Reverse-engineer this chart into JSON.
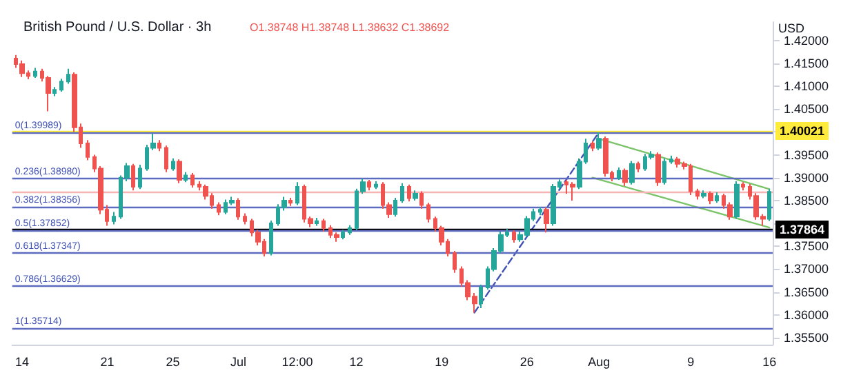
{
  "chart_data": {
    "type": "candlestick",
    "title": "British Pound / U.S. Dollar · 3h",
    "subtitle": "O1.38748 H1.38748 L1.38632 C1.38692",
    "ylabel": "USD",
    "categories": [
      null,
      "14",
      null,
      null,
      null,
      null,
      null,
      null,
      null,
      null,
      null,
      null,
      null,
      null,
      "21",
      null,
      null,
      null,
      null,
      null,
      null,
      null,
      null,
      null,
      "25",
      null,
      null,
      null,
      null,
      null,
      null,
      null,
      null,
      null,
      "Jul",
      null,
      null,
      null,
      null,
      null,
      null,
      null,
      null,
      "12:00",
      null,
      null,
      null,
      null,
      null,
      null,
      null,
      null,
      "12",
      null,
      null,
      null,
      null,
      null,
      null,
      null,
      null,
      null,
      null,
      null,
      null,
      "19",
      null,
      null,
      null,
      null,
      null,
      null,
      null,
      null,
      null,
      null,
      null,
      null,
      "26",
      null,
      null,
      null,
      null,
      null,
      null,
      null,
      null,
      null,
      null,
      "Aug",
      null,
      null,
      null,
      null,
      null,
      null,
      null,
      null,
      null,
      null,
      null,
      null,
      null,
      "9",
      null,
      null,
      null,
      null,
      null,
      null,
      null,
      null,
      null,
      null,
      null,
      "16"
    ],
    "ohlc": [
      [
        1.416,
        1.4168,
        1.414,
        1.4148
      ],
      [
        1.4148,
        1.4156,
        1.412,
        1.4128
      ],
      [
        1.4128,
        1.4134,
        1.4115,
        1.4122
      ],
      [
        1.4122,
        1.414,
        1.4118,
        1.4132
      ],
      [
        1.4132,
        1.4138,
        1.411,
        1.4118
      ],
      [
        1.4118,
        1.4122,
        1.4045,
        1.4085
      ],
      [
        1.4085,
        1.4098,
        1.4078,
        1.4092
      ],
      [
        1.4092,
        1.4116,
        1.4088,
        1.411
      ],
      [
        1.411,
        1.4138,
        1.4105,
        1.4125
      ],
      [
        1.4125,
        1.413,
        1.4,
        1.401
      ],
      [
        1.401,
        1.4018,
        1.3965,
        1.3975
      ],
      [
        1.3975,
        1.3982,
        1.3938,
        1.3945
      ],
      [
        1.3945,
        1.395,
        1.3912,
        1.392
      ],
      [
        1.392,
        1.3925,
        1.382,
        1.383
      ],
      [
        1.383,
        1.384,
        1.3795,
        1.3805
      ],
      [
        1.3805,
        1.3825,
        1.3798,
        1.3815
      ],
      [
        1.3815,
        1.3905,
        1.381,
        1.39
      ],
      [
        1.39,
        1.3932,
        1.3892,
        1.3925
      ],
      [
        1.3925,
        1.393,
        1.3872,
        1.388
      ],
      [
        1.388,
        1.3928,
        1.3875,
        1.392
      ],
      [
        1.392,
        1.3972,
        1.3915,
        1.3965
      ],
      [
        1.3965,
        1.3996,
        1.396,
        1.3975
      ],
      [
        1.3975,
        1.3982,
        1.3958,
        1.3965
      ],
      [
        1.3965,
        1.397,
        1.3912,
        1.392
      ],
      [
        1.392,
        1.3942,
        1.3915,
        1.3935
      ],
      [
        1.3935,
        1.394,
        1.3888,
        1.3895
      ],
      [
        1.3895,
        1.3912,
        1.389,
        1.3905
      ],
      [
        1.3905,
        1.391,
        1.3878,
        1.3885
      ],
      [
        1.3885,
        1.3892,
        1.3872,
        1.388
      ],
      [
        1.388,
        1.3885,
        1.3852,
        1.386
      ],
      [
        1.386,
        1.3866,
        1.3832,
        1.384
      ],
      [
        1.384,
        1.3846,
        1.3818,
        1.3825
      ],
      [
        1.3825,
        1.3852,
        1.382,
        1.3845
      ],
      [
        1.3845,
        1.3858,
        1.384,
        1.385
      ],
      [
        1.385,
        1.3855,
        1.3808,
        1.3815
      ],
      [
        1.3815,
        1.3822,
        1.3798,
        1.3805
      ],
      [
        1.3805,
        1.381,
        1.3772,
        1.378
      ],
      [
        1.378,
        1.3786,
        1.3752,
        1.376
      ],
      [
        1.376,
        1.3766,
        1.3728,
        1.3735
      ],
      [
        1.3735,
        1.3806,
        1.373,
        1.38
      ],
      [
        1.38,
        1.3842,
        1.3795,
        1.3835
      ],
      [
        1.3835,
        1.3858,
        1.3828,
        1.385
      ],
      [
        1.385,
        1.3856,
        1.3838,
        1.3845
      ],
      [
        1.3845,
        1.389,
        1.384,
        1.388
      ],
      [
        1.388,
        1.3885,
        1.3802,
        1.381
      ],
      [
        1.381,
        1.3815,
        1.3792,
        1.38
      ],
      [
        1.38,
        1.3812,
        1.3795,
        1.3805
      ],
      [
        1.3805,
        1.381,
        1.3782,
        1.379
      ],
      [
        1.379,
        1.3796,
        1.3768,
        1.3775
      ],
      [
        1.3775,
        1.378,
        1.376,
        1.377
      ],
      [
        1.377,
        1.3786,
        1.3765,
        1.378
      ],
      [
        1.378,
        1.3796,
        1.3775,
        1.379
      ],
      [
        1.379,
        1.3876,
        1.3785,
        1.387
      ],
      [
        1.387,
        1.3898,
        1.3865,
        1.389
      ],
      [
        1.389,
        1.3895,
        1.3872,
        1.388
      ],
      [
        1.388,
        1.3892,
        1.3875,
        1.3885
      ],
      [
        1.3885,
        1.389,
        1.3832,
        1.384
      ],
      [
        1.384,
        1.3846,
        1.3812,
        1.382
      ],
      [
        1.382,
        1.3856,
        1.3815,
        1.385
      ],
      [
        1.385,
        1.3888,
        1.3845,
        1.388
      ],
      [
        1.388,
        1.3885,
        1.3848,
        1.3855
      ],
      [
        1.3855,
        1.3872,
        1.385,
        1.3865
      ],
      [
        1.3865,
        1.387,
        1.3832,
        1.384
      ],
      [
        1.384,
        1.3845,
        1.3802,
        1.381
      ],
      [
        1.381,
        1.3815,
        1.3782,
        1.379
      ],
      [
        1.379,
        1.3795,
        1.3752,
        1.376
      ],
      [
        1.376,
        1.3766,
        1.3728,
        1.3735
      ],
      [
        1.3735,
        1.374,
        1.3692,
        1.37
      ],
      [
        1.37,
        1.3706,
        1.3662,
        1.367
      ],
      [
        1.367,
        1.3676,
        1.3632,
        1.364
      ],
      [
        1.364,
        1.3648,
        1.3605,
        1.3625
      ],
      [
        1.3625,
        1.3666,
        1.3615,
        1.366
      ],
      [
        1.366,
        1.3706,
        1.3655,
        1.37
      ],
      [
        1.37,
        1.3746,
        1.3695,
        1.374
      ],
      [
        1.374,
        1.3782,
        1.3735,
        1.3775
      ],
      [
        1.3775,
        1.3788,
        1.377,
        1.378
      ],
      [
        1.378,
        1.3785,
        1.3758,
        1.3765
      ],
      [
        1.3765,
        1.3782,
        1.376,
        1.3775
      ],
      [
        1.3775,
        1.3816,
        1.377,
        1.381
      ],
      [
        1.381,
        1.3832,
        1.3805,
        1.3825
      ],
      [
        1.3825,
        1.3836,
        1.3818,
        1.383
      ],
      [
        1.383,
        1.3835,
        1.378,
        1.38
      ],
      [
        1.38,
        1.3886,
        1.3795,
        1.388
      ],
      [
        1.388,
        1.3896,
        1.3875,
        1.389
      ],
      [
        1.389,
        1.3895,
        1.3865,
        1.3885
      ],
      [
        1.3885,
        1.389,
        1.385,
        1.388
      ],
      [
        1.388,
        1.3942,
        1.3875,
        1.3935
      ],
      [
        1.3935,
        1.3985,
        1.393,
        1.3975
      ],
      [
        1.3975,
        1.398,
        1.3958,
        1.3965
      ],
      [
        1.3965,
        1.3999,
        1.396,
        1.3985
      ],
      [
        1.3985,
        1.399,
        1.3902,
        1.391
      ],
      [
        1.391,
        1.3915,
        1.3892,
        1.39
      ],
      [
        1.39,
        1.3922,
        1.3895,
        1.3915
      ],
      [
        1.3915,
        1.392,
        1.3882,
        1.389
      ],
      [
        1.389,
        1.3936,
        1.3885,
        1.393
      ],
      [
        1.393,
        1.3935,
        1.3912,
        1.392
      ],
      [
        1.392,
        1.3952,
        1.3915,
        1.3945
      ],
      [
        1.3945,
        1.3958,
        1.394,
        1.395
      ],
      [
        1.395,
        1.3955,
        1.3882,
        1.389
      ],
      [
        1.389,
        1.3942,
        1.3885,
        1.3935
      ],
      [
        1.3935,
        1.3948,
        1.393,
        1.394
      ],
      [
        1.394,
        1.3945,
        1.3922,
        1.393
      ],
      [
        1.393,
        1.3935,
        1.3918,
        1.3925
      ],
      [
        1.3925,
        1.393,
        1.3862,
        1.387
      ],
      [
        1.387,
        1.3876,
        1.3852,
        1.386
      ],
      [
        1.386,
        1.3872,
        1.3855,
        1.3865
      ],
      [
        1.3865,
        1.387,
        1.3842,
        1.385
      ],
      [
        1.385,
        1.3868,
        1.3845,
        1.386
      ],
      [
        1.386,
        1.3865,
        1.3832,
        1.384
      ],
      [
        1.384,
        1.3846,
        1.3808,
        1.3815
      ],
      [
        1.3815,
        1.3892,
        1.381,
        1.3885
      ],
      [
        1.3885,
        1.389,
        1.3872,
        1.388
      ],
      [
        1.388,
        1.3886,
        1.3852,
        1.386
      ],
      [
        1.386,
        1.3866,
        1.3808,
        1.3815
      ],
      [
        1.3815,
        1.382,
        1.3795,
        1.381
      ],
      [
        1.381,
        1.3875,
        1.3805,
        1.3869
      ]
    ],
    "colors": [
      "#ef5350",
      "#ef5350",
      "#ef5350",
      "#26a69a",
      "#ef5350",
      "#ef5350",
      "#26a69a",
      "#26a69a",
      "#26a69a",
      "#ef5350",
      "#ef5350",
      "#ef5350",
      "#ef5350",
      "#ef5350",
      "#ef5350",
      "#26a69a",
      "#26a69a",
      "#26a69a",
      "#ef5350",
      "#26a69a",
      "#26a69a",
      "#26a69a",
      "#ef5350",
      "#ef5350",
      "#26a69a",
      "#ef5350",
      "#26a69a",
      "#ef5350",
      "#ef5350",
      "#ef5350",
      "#ef5350",
      "#ef5350",
      "#26a69a",
      "#26a69a",
      "#ef5350",
      "#ef5350",
      "#ef5350",
      "#ef5350",
      "#ef5350",
      "#26a69a",
      "#26a69a",
      "#26a69a",
      "#ef5350",
      "#26a69a",
      "#ef5350",
      "#ef5350",
      "#26a69a",
      "#ef5350",
      "#ef5350",
      "#ef5350",
      "#26a69a",
      "#26a69a",
      "#26a69a",
      "#26a69a",
      "#ef5350",
      "#26a69a",
      "#ef5350",
      "#ef5350",
      "#26a69a",
      "#26a69a",
      "#ef5350",
      "#26a69a",
      "#ef5350",
      "#ef5350",
      "#ef5350",
      "#ef5350",
      "#ef5350",
      "#ef5350",
      "#ef5350",
      "#ef5350",
      "#ef5350",
      "#26a69a",
      "#26a69a",
      "#26a69a",
      "#26a69a",
      "#26a69a",
      "#ef5350",
      "#26a69a",
      "#26a69a",
      "#26a69a",
      "#26a69a",
      "#ef5350",
      "#26a69a",
      "#26a69a",
      "#ef5350",
      "#ef5350",
      "#26a69a",
      "#26a69a",
      "#ef5350",
      "#26a69a",
      "#ef5350",
      "#ef5350",
      "#26a69a",
      "#ef5350",
      "#26a69a",
      "#ef5350",
      "#26a69a",
      "#26a69a",
      "#ef5350",
      "#26a69a",
      "#26a69a",
      "#ef5350",
      "#ef5350",
      "#ef5350",
      "#ef5350",
      "#26a69a",
      "#ef5350",
      "#26a69a",
      "#ef5350",
      "#ef5350",
      "#26a69a",
      "#ef5350",
      "#ef5350",
      "#ef5350",
      "#ef5350",
      "#26a69a"
    ],
    "series": [
      {
        "type": "line",
        "color": "#7cc46a",
        "line_style": "solid",
        "values": [
          null,
          null,
          null,
          null,
          null,
          null,
          null,
          null,
          null,
          null,
          null,
          null,
          null,
          null,
          null,
          null,
          null,
          null,
          null,
          null,
          null,
          null,
          null,
          null,
          null,
          null,
          null,
          null,
          null,
          null,
          null,
          null,
          null,
          null,
          null,
          null,
          null,
          null,
          null,
          null,
          null,
          null,
          null,
          null,
          null,
          null,
          null,
          null,
          null,
          null,
          null,
          null,
          null,
          null,
          null,
          null,
          null,
          null,
          null,
          null,
          null,
          null,
          null,
          null,
          null,
          null,
          null,
          null,
          null,
          null,
          null,
          null,
          null,
          null,
          null,
          null,
          null,
          null,
          null,
          null,
          null,
          null,
          null,
          null,
          null,
          null,
          null,
          null,
          null,
          1.3985,
          null,
          null,
          null,
          null,
          null,
          null,
          null,
          null,
          null,
          null,
          null,
          null,
          null,
          null,
          null,
          null,
          null,
          null,
          null,
          null,
          null,
          null,
          null,
          null,
          null,
          1.3875
        ]
      },
      {
        "type": "line",
        "color": "#7cc46a",
        "line_style": "solid",
        "values": [
          null,
          null,
          null,
          null,
          null,
          null,
          null,
          null,
          null,
          null,
          null,
          null,
          null,
          null,
          null,
          null,
          null,
          null,
          null,
          null,
          null,
          null,
          null,
          null,
          null,
          null,
          null,
          null,
          null,
          null,
          null,
          null,
          null,
          null,
          null,
          null,
          null,
          null,
          null,
          null,
          null,
          null,
          null,
          null,
          null,
          null,
          null,
          null,
          null,
          null,
          null,
          null,
          null,
          null,
          null,
          null,
          null,
          null,
          null,
          null,
          null,
          null,
          null,
          null,
          null,
          null,
          null,
          null,
          null,
          null,
          null,
          null,
          null,
          null,
          null,
          null,
          null,
          null,
          null,
          null,
          null,
          null,
          null,
          null,
          null,
          null,
          null,
          null,
          1.39,
          null,
          null,
          null,
          null,
          null,
          null,
          null,
          null,
          null,
          null,
          null,
          null,
          null,
          null,
          null,
          null,
          null,
          null,
          null,
          null,
          null,
          null,
          null,
          null,
          null,
          null,
          1.3791
        ]
      },
      {
        "type": "line",
        "color": "#3f51b5",
        "line_style": "dashed",
        "values": [
          null,
          null,
          null,
          null,
          null,
          null,
          null,
          null,
          null,
          null,
          null,
          null,
          null,
          null,
          null,
          null,
          null,
          null,
          null,
          null,
          null,
          null,
          null,
          null,
          null,
          null,
          null,
          null,
          null,
          null,
          null,
          null,
          null,
          null,
          null,
          null,
          null,
          null,
          null,
          null,
          null,
          null,
          null,
          null,
          null,
          null,
          null,
          null,
          null,
          null,
          null,
          null,
          null,
          null,
          null,
          null,
          null,
          null,
          null,
          null,
          null,
          null,
          null,
          null,
          null,
          null,
          null,
          null,
          null,
          null,
          1.3605,
          null,
          null,
          null,
          null,
          null,
          null,
          null,
          null,
          null,
          null,
          null,
          null,
          null,
          null,
          null,
          null,
          null,
          null,
          1.3999,
          null,
          null,
          null,
          null,
          null,
          null,
          null,
          null,
          null,
          null,
          null,
          null,
          null,
          null,
          null,
          null,
          null,
          null,
          null,
          null,
          null,
          null,
          null,
          null,
          null,
          null
        ]
      }
    ],
    "ref_lines": [
      {
        "axis": "y",
        "value": 1.40021,
        "label": "1.40021",
        "color": "#ffeb3b"
      },
      {
        "axis": "y",
        "value": 1.37864,
        "label": "1.37864",
        "color": "#000000"
      },
      {
        "axis": "y",
        "value": 1.38692,
        "label": null,
        "color": "#f7b4b4"
      },
      {
        "axis": "y",
        "value": 1.39989,
        "label": null,
        "color": "#5c6bc0"
      },
      {
        "axis": "y",
        "value": 1.3898,
        "label": null,
        "color": "#5c6bc0"
      },
      {
        "axis": "y",
        "value": 1.38356,
        "label": null,
        "color": "#5c6bc0"
      },
      {
        "axis": "y",
        "value": 1.37852,
        "label": null,
        "color": "#5c6bc0"
      },
      {
        "axis": "y",
        "value": 1.37347,
        "label": null,
        "color": "#5c6bc0"
      },
      {
        "axis": "y",
        "value": 1.36629,
        "label": null,
        "color": "#5c6bc0"
      },
      {
        "axis": "y",
        "value": 1.35714,
        "label": null,
        "color": "#5c6bc0"
      }
    ],
    "annotations": [
      {
        "text": "0(1.39989)",
        "y": 1.39989
      },
      {
        "text": "0.236(1.38980)",
        "y": 1.3898
      },
      {
        "text": "0.382(1.38356)",
        "y": 1.38356
      },
      {
        "text": "0.5(1.37852)",
        "y": 1.37852
      },
      {
        "text": "0.618(1.37347)",
        "y": 1.37347
      },
      {
        "text": "0.786(1.36629)",
        "y": 1.36629
      },
      {
        "text": "1(1.35714)",
        "y": 1.35714
      }
    ],
    "ylim": [
      1.3535,
      1.424
    ],
    "yticks": [
      {
        "value": 1.355,
        "label": "1.35500"
      },
      {
        "value": 1.36,
        "label": "1.36000"
      },
      {
        "value": 1.365,
        "label": "1.36500"
      },
      {
        "value": 1.37,
        "label": "1.37000"
      },
      {
        "value": 1.375,
        "label": "1.37500"
      },
      {
        "value": 1.38,
        "label": null
      },
      {
        "value": 1.385,
        "label": "1.38500"
      },
      {
        "value": 1.39,
        "label": "1.39000"
      },
      {
        "value": 1.395,
        "label": "1.39500"
      },
      {
        "value": 1.4,
        "label": null
      },
      {
        "value": 1.405,
        "label": "1.40500"
      },
      {
        "value": 1.41,
        "label": "1.41000"
      },
      {
        "value": 1.415,
        "label": "1.41500"
      },
      {
        "value": 1.42,
        "label": "1.42000"
      }
    ],
    "grid": false
  }
}
